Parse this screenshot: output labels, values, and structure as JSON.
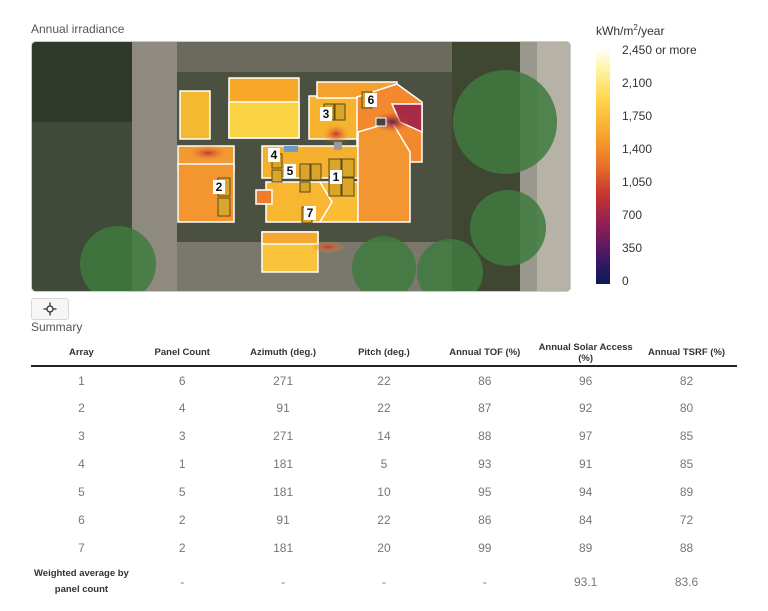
{
  "irradiance": {
    "title": "Annual irradiance",
    "legend": {
      "unit_prefix": "kWh/m",
      "unit_sup": "2",
      "unit_suffix": "/year",
      "labels": [
        "2,450 or more",
        "2,100",
        "1,750",
        "1,400",
        "1,050",
        "700",
        "350",
        "0"
      ]
    },
    "array_labels": [
      "1",
      "2",
      "3",
      "4",
      "5",
      "6",
      "7"
    ]
  },
  "recenter_icon": "crosshair-move-icon",
  "summary": {
    "title": "Summary",
    "columns": [
      "Array",
      "Panel Count",
      "Azimuth (deg.)",
      "Pitch (deg.)",
      "Annual TOF (%)",
      "Annual Solar Access (%)",
      "Annual TSRF (%)"
    ],
    "rows": [
      [
        "1",
        "6",
        "271",
        "22",
        "86",
        "96",
        "82"
      ],
      [
        "2",
        "4",
        "91",
        "22",
        "87",
        "92",
        "80"
      ],
      [
        "3",
        "3",
        "271",
        "14",
        "88",
        "97",
        "85"
      ],
      [
        "4",
        "1",
        "181",
        "5",
        "93",
        "91",
        "85"
      ],
      [
        "5",
        "5",
        "181",
        "10",
        "95",
        "94",
        "89"
      ],
      [
        "6",
        "2",
        "91",
        "22",
        "86",
        "84",
        "72"
      ],
      [
        "7",
        "2",
        "181",
        "20",
        "99",
        "89",
        "88"
      ]
    ],
    "average": {
      "label_line1": "Weighted average by",
      "label_line2": "panel count",
      "values": [
        "-",
        "-",
        "-",
        "-",
        "93.1",
        "83.6"
      ]
    }
  }
}
